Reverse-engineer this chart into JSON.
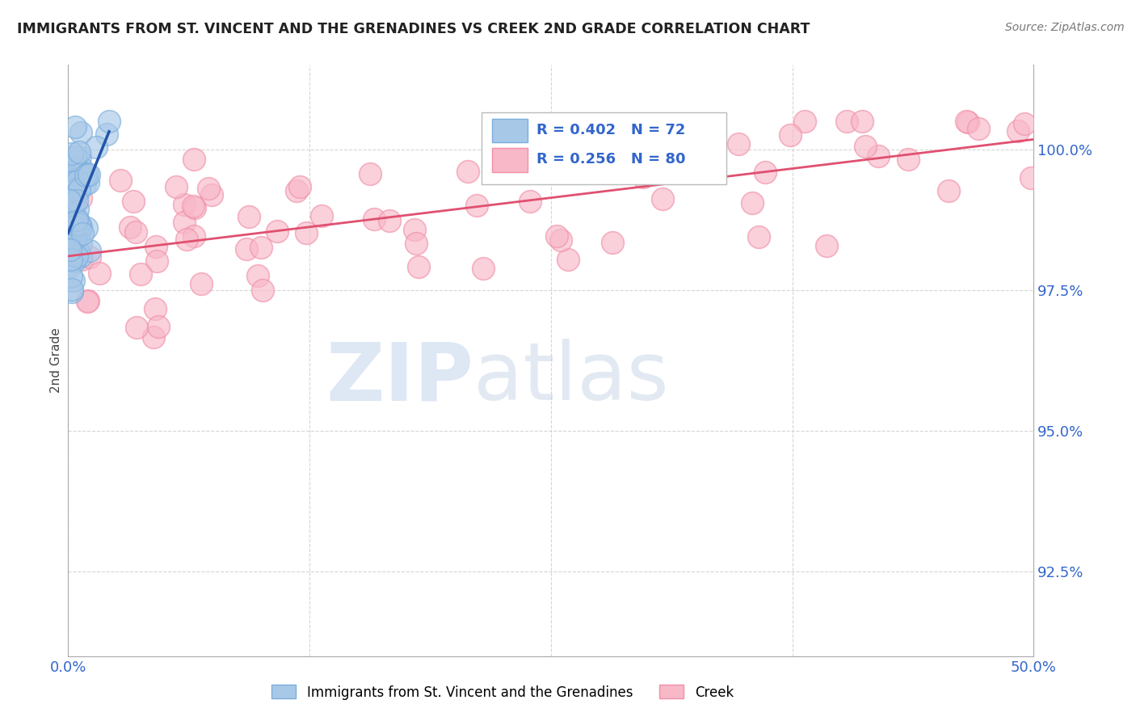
{
  "title": "IMMIGRANTS FROM ST. VINCENT AND THE GRENADINES VS CREEK 2ND GRADE CORRELATION CHART",
  "source": "Source: ZipAtlas.com",
  "ylabel": "2nd Grade",
  "xlim": [
    0.0,
    50.0
  ],
  "ylim": [
    91.0,
    101.5
  ],
  "xtick_positions": [
    0.0,
    12.5,
    25.0,
    37.5,
    50.0
  ],
  "xtick_labels": [
    "0.0%",
    "",
    "",
    "",
    "50.0%"
  ],
  "ytick_values": [
    92.5,
    95.0,
    97.5,
    100.0
  ],
  "ytick_labels": [
    "92.5%",
    "95.0%",
    "97.5%",
    "100.0%"
  ],
  "blue_color": "#a8c8e8",
  "blue_edge_color": "#7aaedc",
  "pink_color": "#f8b8c8",
  "pink_edge_color": "#f090a8",
  "blue_line_color": "#2255aa",
  "pink_line_color": "#e05070",
  "blue_R": 0.402,
  "blue_N": 72,
  "pink_R": 0.256,
  "pink_N": 80,
  "text_blue_color": "#3366cc",
  "text_dark_color": "#333333",
  "legend_patch_blue": "#a8c8e8",
  "legend_patch_pink": "#f8b8c8",
  "watermark_zip_color": "#c8d8ee",
  "watermark_atlas_color": "#c0d0e4",
  "grid_color": "#cccccc",
  "spine_color": "#aaaaaa"
}
